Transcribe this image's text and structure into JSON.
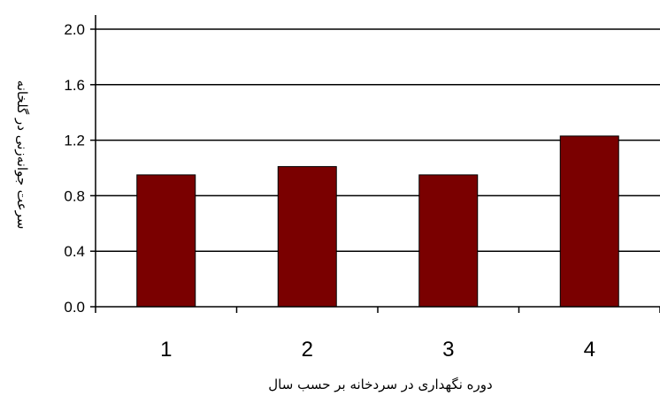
{
  "chart_data": {
    "type": "bar",
    "title": "",
    "xlabel": "دوره نگهداری در سردخانه بر حسب سال",
    "ylabel": "سرعت جوانه‌زنی در گلخانه",
    "categories": [
      "1",
      "2",
      "3",
      "4"
    ],
    "values": [
      0.95,
      1.01,
      0.95,
      1.23
    ],
    "ylim": [
      0,
      2.0
    ],
    "yticks": [
      "0.0",
      "0.4",
      "0.8",
      "1.2",
      "1.6",
      "2.0"
    ],
    "grid": true,
    "legend": "none",
    "colors": {
      "bar": "#7a0000",
      "bar_stroke": "#000000",
      "grid": "#000000",
      "axis": "#000000"
    }
  }
}
